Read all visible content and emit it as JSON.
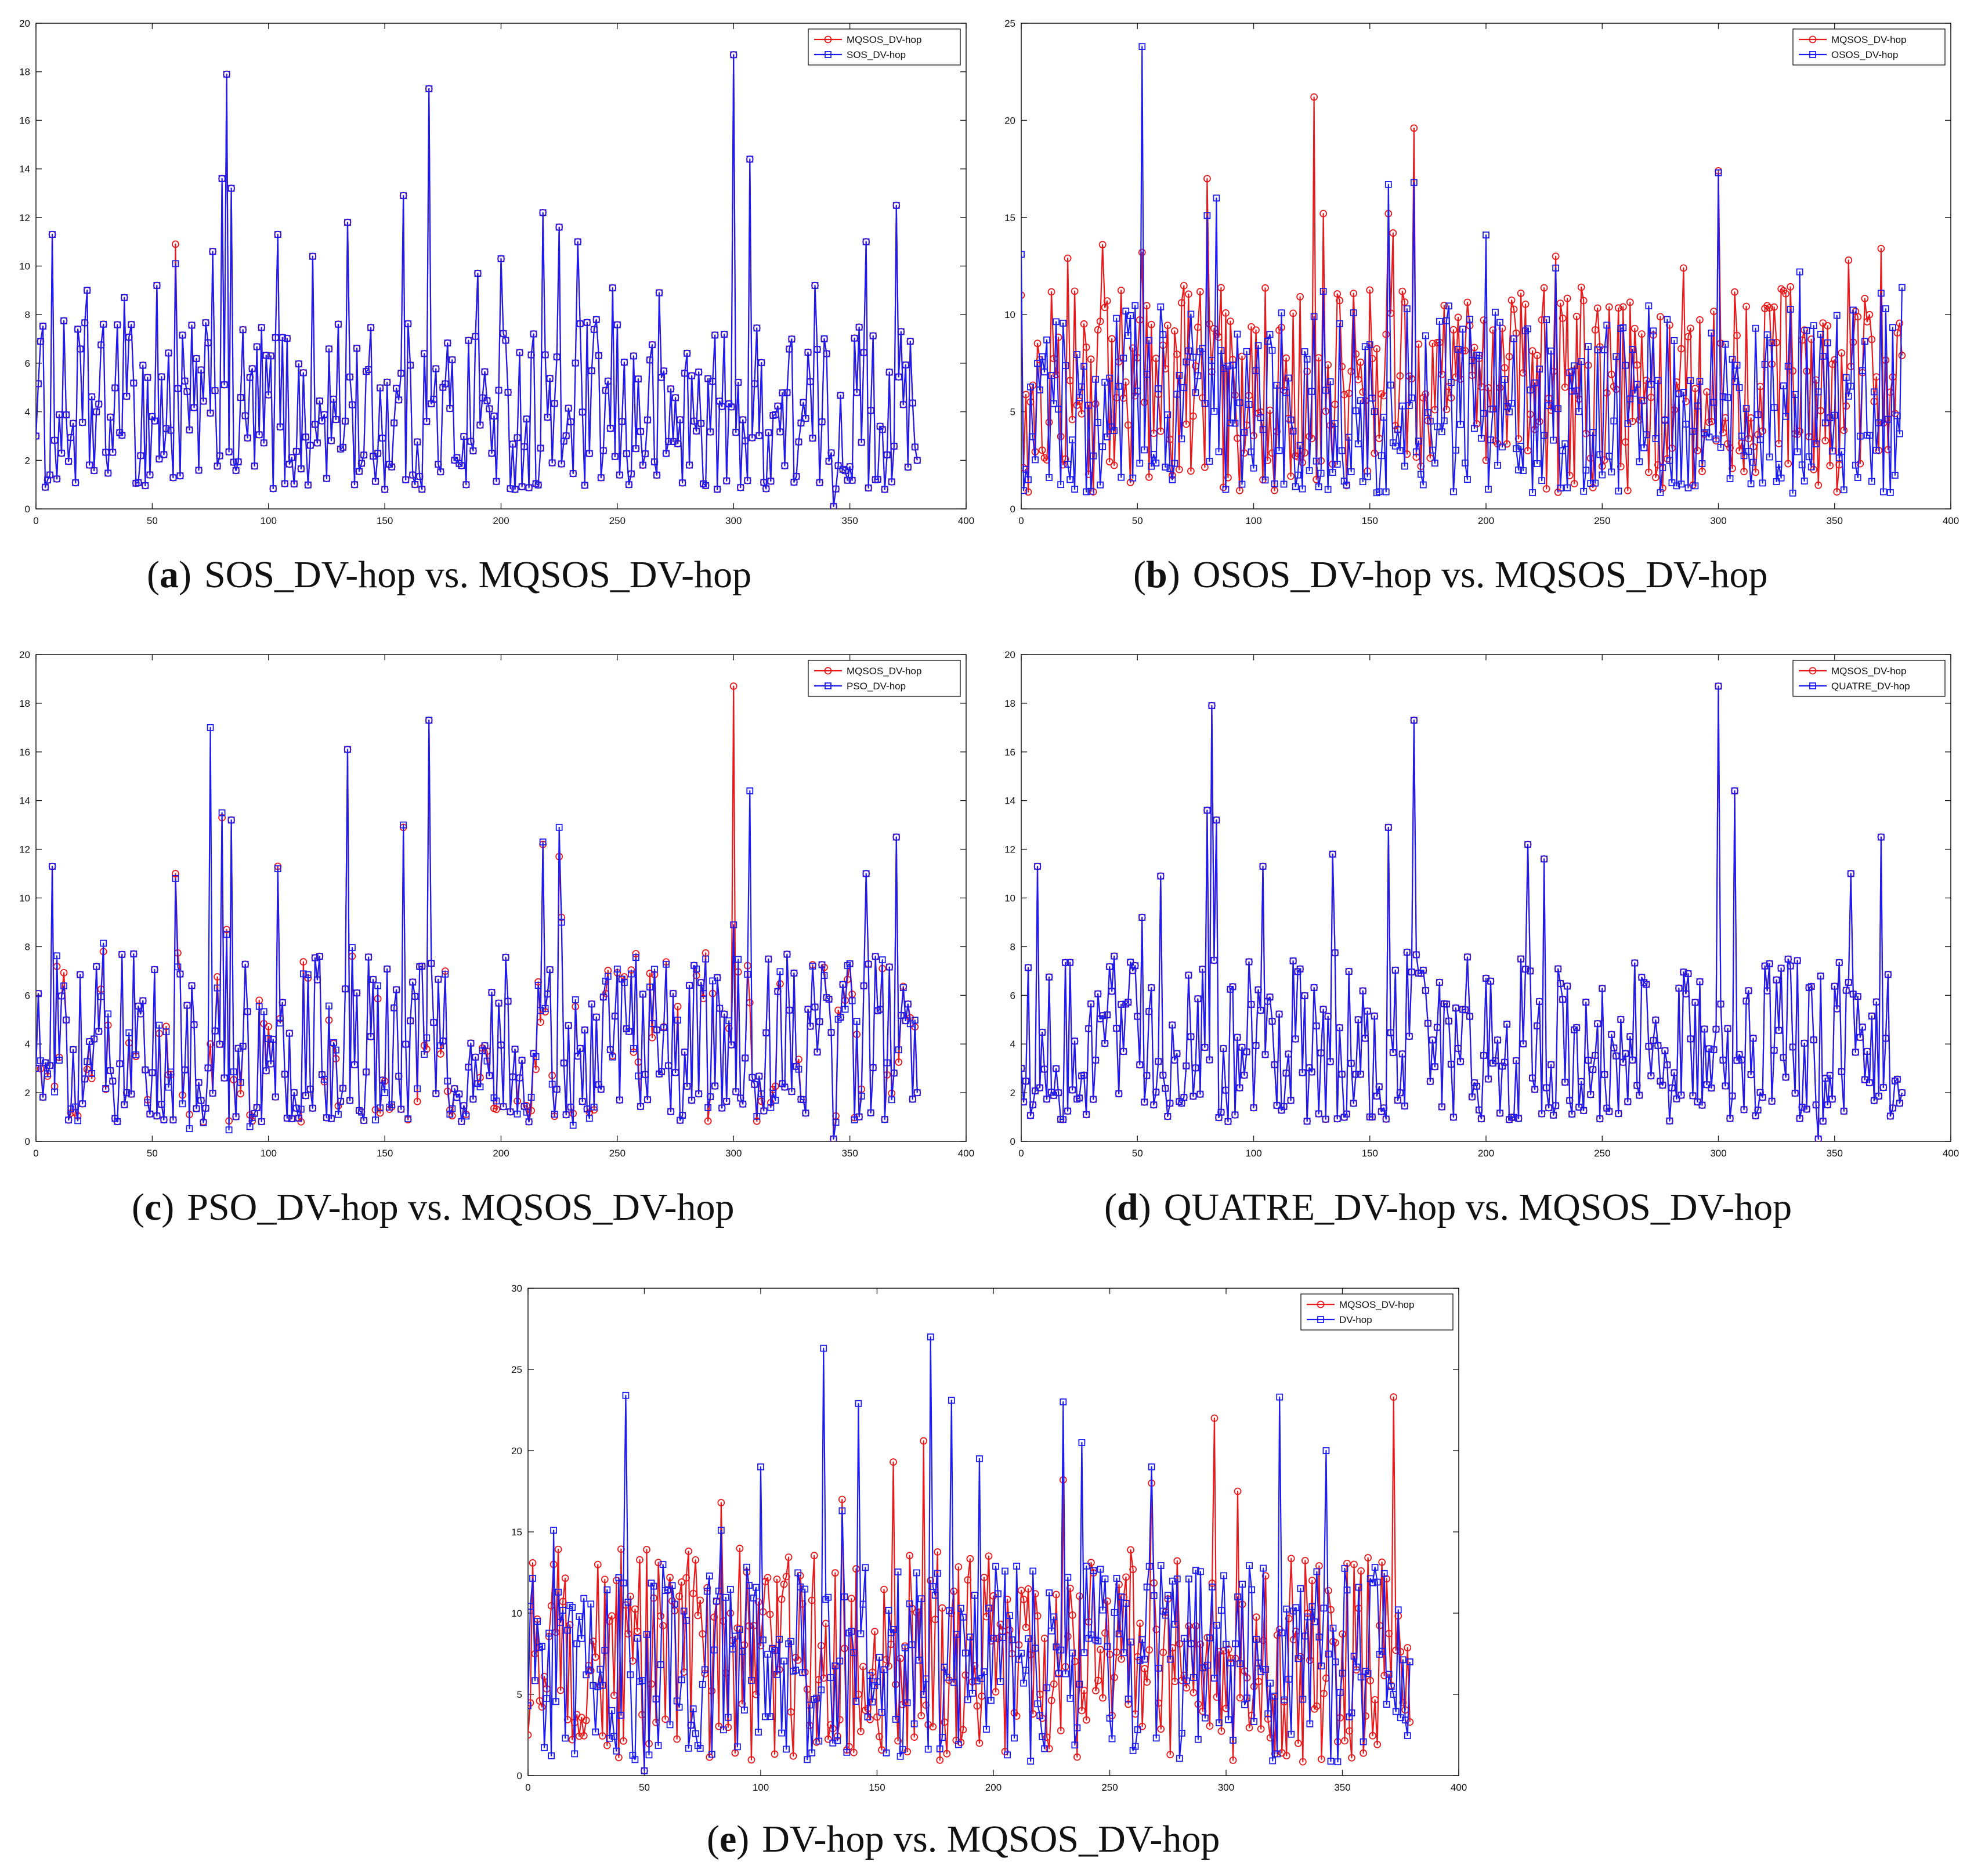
{
  "figure": {
    "series_names": {
      "mqsos": "MQSOS_DV-hop"
    },
    "colors": {
      "mqsos": "#e8191b",
      "comparator": "#1c1cf0",
      "axis": "#222222",
      "background": "#ffffff"
    },
    "markers": {
      "mqsos": "circle",
      "comparator": "square"
    }
  },
  "chart_data": [
    {
      "type": "line",
      "id": "a",
      "caption_letter": "a",
      "caption_open": "(",
      "caption_close": ")",
      "caption_text": "SOS_DV-hop vs. MQSOS_DV-hop",
      "legend": [
        "MQSOS_DV-hop",
        "SOS_DV-hop"
      ],
      "xlim": [
        0,
        400
      ],
      "ylim": [
        0,
        20
      ],
      "xticks": [
        0,
        50,
        100,
        150,
        200,
        250,
        300,
        350,
        400
      ],
      "yticks": [
        0,
        2,
        4,
        6,
        8,
        10,
        12,
        14,
        16,
        18,
        20
      ],
      "n_points": 380,
      "sample_x": [
        0,
        7,
        22,
        38,
        52,
        60,
        76,
        80,
        82,
        84,
        104,
        119,
        134,
        158,
        169,
        190,
        200,
        218,
        225,
        233,
        248,
        268,
        300,
        307,
        335,
        343,
        357,
        370,
        376,
        379
      ],
      "series": [
        {
          "name": "MQSOS_DV-hop",
          "values": [
            3.0,
            11.3,
            9.0,
            8.7,
            9.2,
            10.9,
            10.6,
            13.6,
            17.9,
            13.2,
            11.3,
            10.4,
            11.8,
            12.9,
            17.3,
            9.7,
            10.3,
            12.2,
            11.6,
            11.0,
            9.1,
            8.9,
            18.7,
            14.4,
            9.2,
            0.1,
            11.0,
            12.5,
            6.9,
            2.0
          ]
        },
        {
          "name": "SOS_DV-hop",
          "values": [
            3.0,
            11.3,
            9.0,
            8.7,
            9.2,
            10.1,
            10.6,
            13.6,
            17.9,
            13.2,
            11.3,
            10.4,
            11.8,
            12.9,
            17.3,
            9.7,
            10.3,
            12.2,
            11.6,
            11.0,
            9.1,
            8.9,
            18.7,
            14.4,
            9.2,
            0.1,
            11.0,
            12.5,
            6.9,
            2.0
          ]
        }
      ]
    },
    {
      "type": "line",
      "id": "b",
      "caption_letter": "b",
      "caption_open": "(",
      "caption_close": ")",
      "caption_text": "OSOS_DV-hop vs. MQSOS_DV-hop",
      "legend": [
        "MQSOS_DV-hop",
        "OSOS_DV-hop"
      ],
      "xlim": [
        0,
        400
      ],
      "ylim": [
        0,
        25
      ],
      "xticks": [
        0,
        50,
        100,
        150,
        200,
        250,
        300,
        350,
        400
      ],
      "yticks": [
        0,
        5,
        10,
        15,
        20,
        25
      ],
      "n_points": 380,
      "sample_x": [
        0,
        20,
        35,
        52,
        60,
        80,
        84,
        126,
        130,
        158,
        160,
        169,
        200,
        230,
        285,
        300,
        335,
        356,
        370,
        379
      ],
      "series": [
        {
          "name": "MQSOS_DV-hop",
          "values": [
            11.0,
            12.9,
            13.6,
            13.2,
            4.0,
            17.0,
            9.0,
            21.2,
            15.2,
            15.2,
            14.2,
            19.6,
            2.5,
            13.0,
            12.4,
            17.4,
            4.0,
            12.8,
            13.4,
            7.9
          ]
        },
        {
          "name": "OSOS_DV-hop",
          "values": [
            13.1,
            2.3,
            3.2,
            23.8,
            10.4,
            15.1,
            16.0,
            9.9,
            11.2,
            16.7,
            3.4,
            16.8,
            14.1,
            12.4,
            6.0,
            17.3,
            12.2,
            5.8,
            11.1,
            11.4
          ]
        }
      ]
    },
    {
      "type": "line",
      "id": "c",
      "caption_letter": "c",
      "caption_open": "(",
      "caption_close": ")",
      "caption_text": "PSO_DV-hop vs. MQSOS_DV-hop",
      "legend": [
        "MQSOS_DV-hop",
        "PSO_DV-hop"
      ],
      "xlim": [
        0,
        400
      ],
      "ylim": [
        0,
        20
      ],
      "xticks": [
        0,
        50,
        100,
        150,
        200,
        250,
        300,
        350,
        400
      ],
      "yticks": [
        0,
        2,
        4,
        6,
        8,
        10,
        12,
        14,
        16,
        18,
        20
      ],
      "n_points": 380,
      "sample_x": [
        0,
        7,
        60,
        75,
        80,
        82,
        84,
        104,
        134,
        158,
        169,
        218,
        225,
        226,
        300,
        307,
        343,
        357,
        370,
        379
      ],
      "series": [
        {
          "name": "MQSOS_DV-hop",
          "values": [
            3.0,
            11.3,
            11.0,
            4.0,
            13.3,
            8.7,
            13.2,
            11.3,
            16.1,
            12.9,
            17.3,
            12.2,
            11.7,
            9.2,
            18.7,
            5.7,
            0.1,
            11.0,
            12.5,
            2.0
          ]
        },
        {
          "name": "PSO_DV-hop",
          "values": [
            3.0,
            11.3,
            10.8,
            17.0,
            13.5,
            8.5,
            13.2,
            11.2,
            16.1,
            13.0,
            17.3,
            12.3,
            12.9,
            9.0,
            8.9,
            14.4,
            0.1,
            11.0,
            12.5,
            2.0
          ]
        }
      ]
    },
    {
      "type": "line",
      "id": "d",
      "caption_letter": "d",
      "caption_open": "(",
      "caption_close": ")",
      "caption_text": "QUATRE_DV-hop vs. MQSOS_DV-hop",
      "legend": [
        "MQSOS_DV-hop",
        "QUATRE_DV-hop"
      ],
      "xlim": [
        0,
        400
      ],
      "ylim": [
        0,
        20
      ],
      "xticks": [
        0,
        50,
        100,
        150,
        200,
        250,
        300,
        350,
        400
      ],
      "yticks": [
        0,
        2,
        4,
        6,
        8,
        10,
        12,
        14,
        16,
        18,
        20
      ],
      "n_points": 380,
      "sample_x": [
        0,
        7,
        52,
        60,
        80,
        82,
        84,
        104,
        134,
        158,
        169,
        218,
        225,
        300,
        307,
        343,
        357,
        370,
        379
      ],
      "series": [
        {
          "name": "MQSOS_DV-hop",
          "values": [
            3.0,
            11.3,
            9.2,
            10.9,
            13.6,
            17.9,
            13.2,
            11.3,
            11.8,
            12.9,
            17.3,
            12.2,
            11.6,
            18.7,
            14.4,
            0.1,
            11.0,
            12.5,
            2.0
          ]
        },
        {
          "name": "QUATRE_DV-hop",
          "values": [
            3.0,
            11.3,
            9.2,
            10.9,
            13.6,
            17.9,
            13.2,
            11.3,
            11.8,
            12.9,
            17.3,
            12.2,
            11.6,
            18.7,
            14.4,
            0.1,
            11.0,
            12.5,
            2.0
          ]
        }
      ]
    },
    {
      "type": "line",
      "id": "e",
      "caption_letter": "e",
      "caption_open": "(",
      "caption_close": ")",
      "caption_text": "DV-hop vs. MQSOS_DV-hop",
      "legend": [
        "MQSOS_DV-hop",
        "DV-hop"
      ],
      "xlim": [
        0,
        400
      ],
      "ylim": [
        0,
        30
      ],
      "xticks": [
        0,
        50,
        100,
        150,
        200,
        250,
        300,
        350,
        400
      ],
      "yticks": [
        0,
        5,
        10,
        15,
        20,
        25,
        30
      ],
      "n_points": 380,
      "sample_x": [
        0,
        11,
        42,
        50,
        83,
        100,
        127,
        135,
        142,
        157,
        170,
        173,
        182,
        194,
        230,
        238,
        268,
        295,
        305,
        323,
        343,
        372,
        379
      ],
      "series": [
        {
          "name": "MQSOS_DV-hop",
          "values": [
            2.5,
            13.0,
            10.5,
            0.3,
            16.8,
            8.0,
            6.0,
            17.0,
            5.0,
            19.3,
            20.6,
            12.0,
            10.0,
            2.0,
            18.2,
            4.0,
            18.0,
            22.0,
            17.5,
            9.0,
            6.0,
            23.3,
            3.3
          ]
        },
        {
          "name": "DV-hop",
          "values": [
            4.3,
            15.1,
            23.4,
            0.3,
            15.1,
            19.0,
            26.3,
            16.3,
            22.9,
            9.0,
            5.0,
            27.0,
            23.1,
            19.5,
            23.0,
            20.5,
            19.0,
            6.0,
            11.0,
            23.3,
            20.0,
            5.0,
            7.0
          ]
        }
      ]
    }
  ]
}
